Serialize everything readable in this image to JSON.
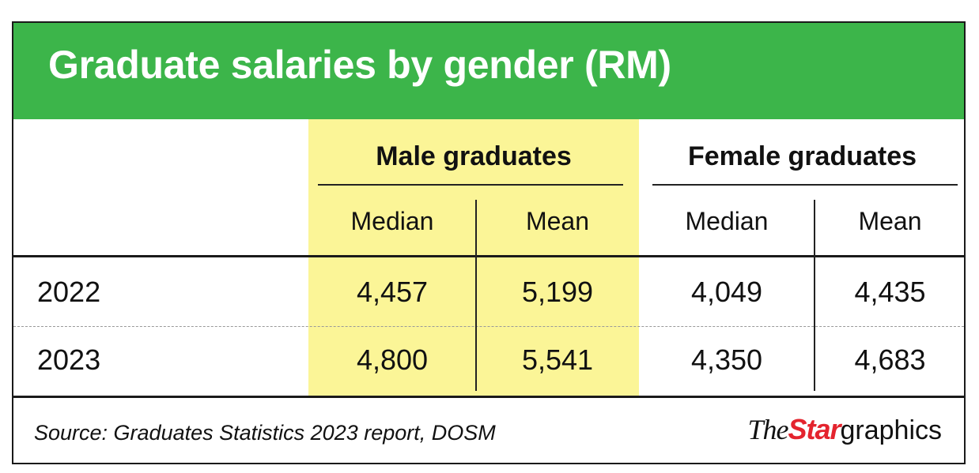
{
  "chart_data": {
    "type": "table",
    "title": "Graduate salaries by gender (RM)",
    "column_groups": [
      {
        "name": "Male graduates",
        "columns": [
          "Median",
          "Mean"
        ],
        "highlight_color": "#fbf597"
      },
      {
        "name": "Female graduates",
        "columns": [
          "Median",
          "Mean"
        ]
      }
    ],
    "rows": [
      {
        "label": "2022",
        "values": [
          "4,457",
          "5,199",
          "4,049",
          "4,435"
        ]
      },
      {
        "label": "2023",
        "values": [
          "4,800",
          "5,541",
          "4,350",
          "4,683"
        ]
      }
    ],
    "source": "Source: Graduates Statistics 2023 report, DOSM"
  },
  "logo": {
    "the": "The",
    "star": "Star",
    "graphics": "graphics"
  },
  "colors": {
    "title_bar": "#3cb54a",
    "male_highlight": "#fbf597",
    "logo_red": "#e4242e"
  }
}
